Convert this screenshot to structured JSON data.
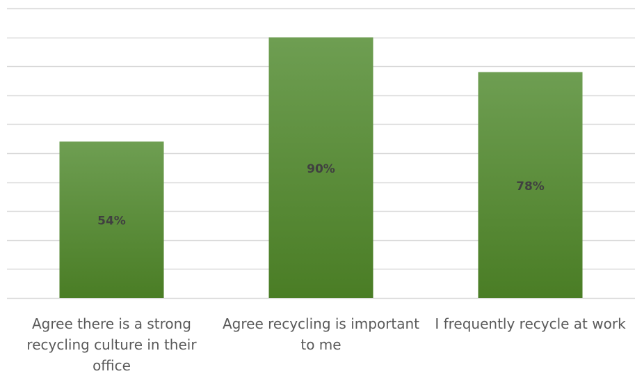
{
  "chart_data": {
    "type": "bar",
    "categories": [
      "Agree there is a strong recycling culture in their office",
      "Agree recycling is important to me",
      "I frequently recycle at work"
    ],
    "values": [
      54,
      90,
      78
    ],
    "data_labels": [
      "54%",
      "90%",
      "78%"
    ],
    "ylim": [
      0,
      100
    ],
    "grid": true,
    "y_axis_labels_shown": false,
    "legend": "none",
    "colors": {
      "bar_top": "#6e9e52",
      "bar_bottom": "#4a7d25",
      "gridline": "#d9d9d9",
      "data_label": "#404040",
      "category_label": "#595959"
    }
  }
}
